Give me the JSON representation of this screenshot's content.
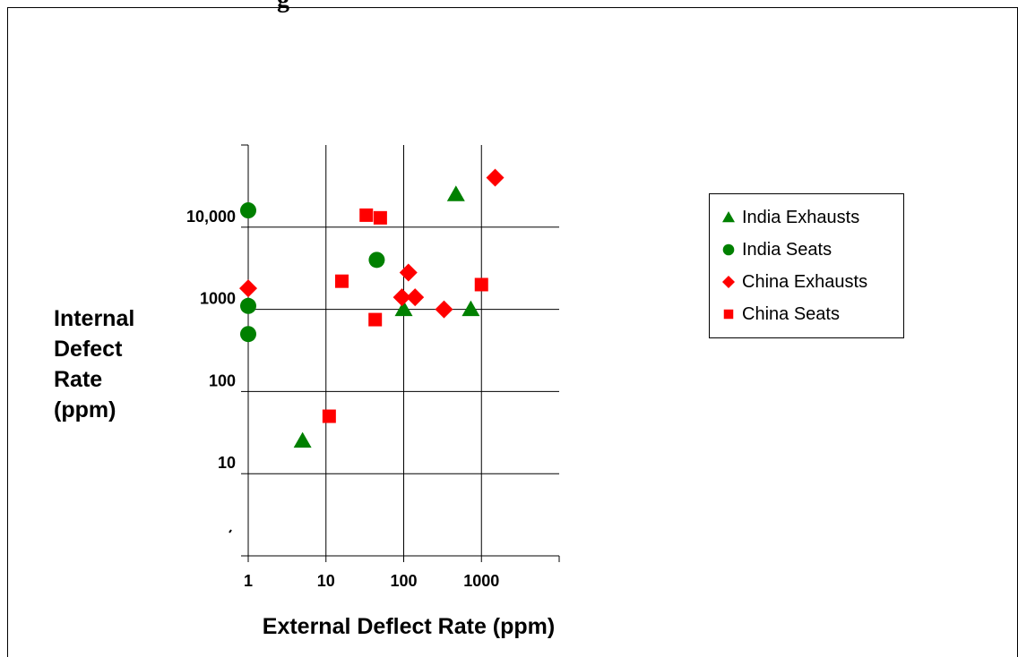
{
  "title_fragment": "g",
  "chart_data": {
    "type": "scatter",
    "title": "",
    "xlabel": "External Deflect Rate (ppm)",
    "ylabel": "Internal Defect Rate (ppm)",
    "ylabel_lines": [
      "Internal",
      "Defect",
      "Rate",
      "(ppm)"
    ],
    "xscale": "log",
    "yscale": "log",
    "xlim": [
      1,
      10000
    ],
    "ylim": [
      1,
      100000
    ],
    "x_tick_labels": [
      "1",
      "10",
      "100",
      "1000"
    ],
    "x_tick_values": [
      1,
      10,
      100,
      1000
    ],
    "y_tick_labels": [
      "10",
      "100",
      "1000",
      "10,000"
    ],
    "y_tick_values": [
      10,
      100,
      1000,
      10000
    ],
    "grid": true,
    "legend_position": "right",
    "series": [
      {
        "name": "India Exhausts",
        "marker": "triangle",
        "color": "#008000",
        "x": [
          5,
          100,
          470,
          730
        ],
        "y": [
          25,
          1000,
          25000,
          1000
        ]
      },
      {
        "name": "India Seats",
        "marker": "circle",
        "color": "#008000",
        "x": [
          1,
          1,
          1,
          45
        ],
        "y": [
          16000,
          1100,
          500,
          4000
        ]
      },
      {
        "name": "China Exhausts",
        "marker": "diamond",
        "color": "#ff0000",
        "x": [
          1,
          95,
          115,
          140,
          330,
          1500
        ],
        "y": [
          1800,
          1400,
          2800,
          1400,
          1000,
          40000
        ]
      },
      {
        "name": "China Seats",
        "marker": "square",
        "color": "#ff0000",
        "x": [
          11,
          16,
          33,
          43,
          50,
          1000
        ],
        "y": [
          50,
          2200,
          14000,
          750,
          13000,
          2000
        ]
      }
    ]
  }
}
